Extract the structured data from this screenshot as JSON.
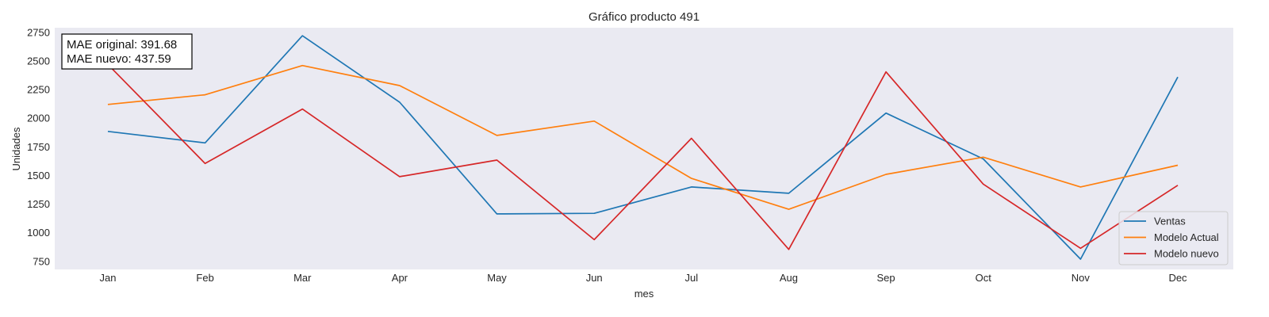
{
  "chart_data": {
    "type": "line",
    "title": "Gráfico producto 491",
    "xlabel": "mes",
    "ylabel": "Unidades",
    "categories": [
      "Jan",
      "Feb",
      "Mar",
      "Apr",
      "May",
      "Jun",
      "Jul",
      "Aug",
      "Sep",
      "Oct",
      "Nov",
      "Dec"
    ],
    "ylim": [
      680,
      2790
    ],
    "yticks": [
      750,
      1000,
      1250,
      1500,
      1750,
      2000,
      2250,
      2500,
      2750
    ],
    "grid": false,
    "legend_position": "lower-right",
    "series": [
      {
        "name": "Ventas",
        "color": "#1f77b4",
        "values": [
          1885,
          1785,
          2720,
          2140,
          1165,
          1170,
          1400,
          1345,
          2045,
          1645,
          770,
          2360
        ]
      },
      {
        "name": "Modelo Actual",
        "color": "#ff7f0e",
        "values": [
          2120,
          2205,
          2460,
          2285,
          1850,
          1975,
          1475,
          1205,
          1510,
          1660,
          1400,
          1590
        ]
      },
      {
        "name": "Modelo nuevo",
        "color": "#d62728",
        "values": [
          2470,
          1605,
          2080,
          1490,
          1635,
          940,
          1825,
          855,
          2405,
          1425,
          865,
          1415
        ]
      }
    ],
    "annotation": {
      "lines": [
        "MAE original: 391.68",
        "MAE nuevo: 437.59"
      ]
    }
  }
}
